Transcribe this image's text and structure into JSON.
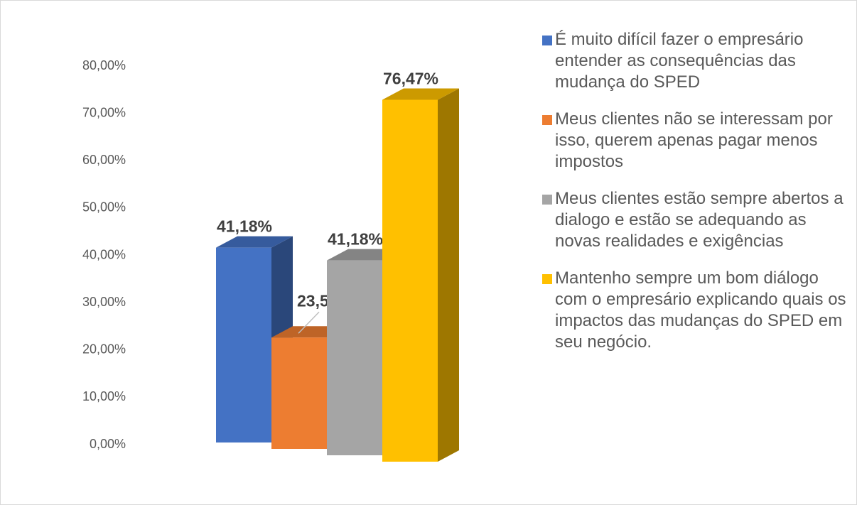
{
  "chart_data": {
    "type": "bar3d",
    "series": [
      {
        "name": "É muito difícil fazer o empresário entender as consequências das mudança do SPED",
        "color": "#4472c4",
        "values": [
          41.18
        ],
        "value_labels": [
          "41,18%"
        ]
      },
      {
        "name": "Meus clientes não se interessam por isso, querem apenas pagar menos impostos",
        "color": "#ed7d31",
        "values": [
          23.53
        ],
        "value_labels": [
          "23,53%"
        ]
      },
      {
        "name": "Meus clientes estão sempre abertos a dialogo e estão se adequando as novas realidades e exigências",
        "color": "#a5a5a5",
        "values": [
          41.18
        ],
        "value_labels": [
          "41,18%"
        ]
      },
      {
        "name": "Mantenho sempre um bom diálogo com o empresário explicando quais os impactos das mudanças do SPED em seu negócio.",
        "color": "#ffc000",
        "values": [
          76.47
        ],
        "value_labels": [
          "76,47%"
        ]
      }
    ],
    "ylim": [
      0,
      80
    ],
    "yticks": [
      {
        "value": 0,
        "label": "0,00%"
      },
      {
        "value": 10,
        "label": "10,00%"
      },
      {
        "value": 20,
        "label": "20,00%"
      },
      {
        "value": 30,
        "label": "30,00%"
      },
      {
        "value": 40,
        "label": "40,00%"
      },
      {
        "value": 50,
        "label": "50,00%"
      },
      {
        "value": 60,
        "label": "60,00%"
      },
      {
        "value": 70,
        "label": "70,00%"
      },
      {
        "value": 80,
        "label": "80,00%"
      }
    ],
    "grid": false,
    "legend": "right"
  }
}
